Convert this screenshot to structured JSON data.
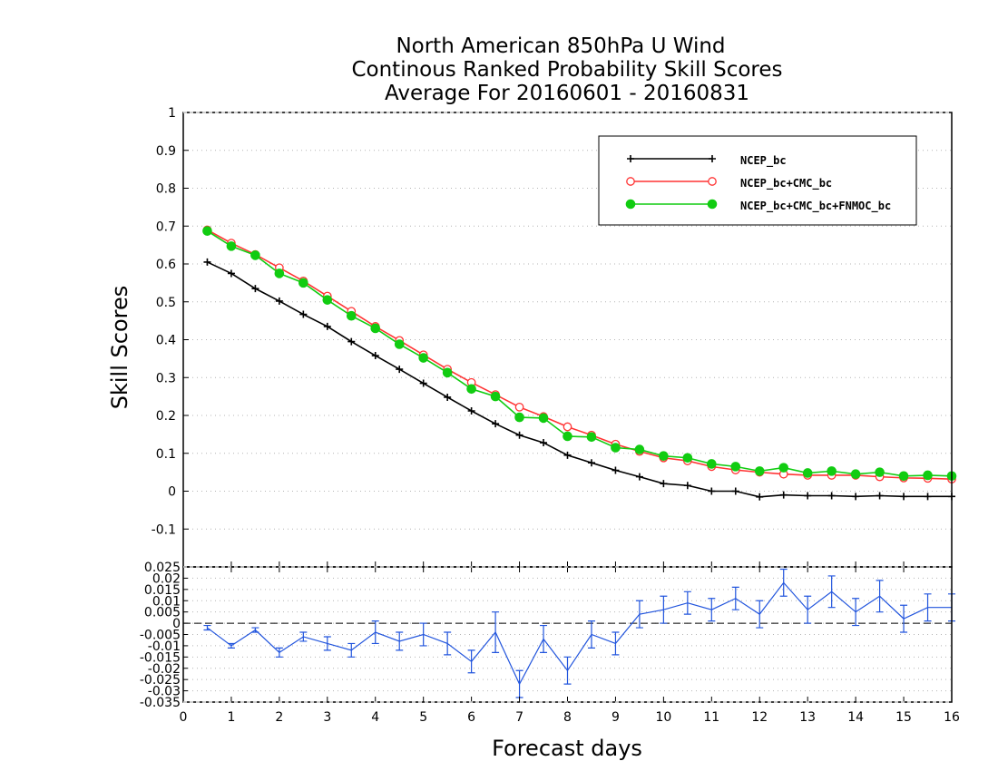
{
  "chart_data": [
    {
      "type": "line",
      "title_lines": [
        "North American 850hPa U Wind",
        "Continous Ranked Probability Skill Scores",
        "Average For 20160601 - 20160831"
      ],
      "xlabel": "Forecast days",
      "ylabel": "Skill Scores",
      "xlim": [
        0,
        16
      ],
      "ylim": [
        -0.2,
        1
      ],
      "yticks": [
        "-0.1",
        "0",
        "0.1",
        "0.2",
        "0.3",
        "0.4",
        "0.5",
        "0.6",
        "0.7",
        "0.8",
        "0.9",
        "1"
      ],
      "grid": true,
      "legend_position": "top-right",
      "x": [
        0.5,
        1,
        1.5,
        2,
        2.5,
        3,
        3.5,
        4,
        4.5,
        5,
        5.5,
        6,
        6.5,
        7,
        7.5,
        8,
        8.5,
        9,
        9.5,
        10,
        10.5,
        11,
        11.5,
        12,
        12.5,
        13,
        13.5,
        14,
        14.5,
        15,
        15.5,
        16
      ],
      "series": [
        {
          "name": "NCEP_bc",
          "color": "#000000",
          "marker": "plus",
          "values": [
            0.605,
            0.575,
            0.535,
            0.502,
            0.467,
            0.435,
            0.395,
            0.358,
            0.322,
            0.285,
            0.248,
            0.212,
            0.178,
            0.148,
            0.128,
            0.095,
            0.075,
            0.055,
            0.038,
            0.02,
            0.015,
            0.0,
            0.0,
            -0.015,
            -0.01,
            -0.012,
            -0.012,
            -0.014,
            -0.012,
            -0.014,
            -0.014,
            -0.014
          ]
        },
        {
          "name": "NCEP_bc+CMC_bc",
          "color": "#ff3333",
          "marker": "open-circle",
          "values": [
            0.69,
            0.655,
            0.625,
            0.59,
            0.555,
            0.515,
            0.475,
            0.435,
            0.398,
            0.36,
            0.322,
            0.287,
            0.255,
            0.222,
            0.197,
            0.17,
            0.148,
            0.124,
            0.105,
            0.088,
            0.08,
            0.065,
            0.056,
            0.05,
            0.045,
            0.042,
            0.042,
            0.042,
            0.038,
            0.035,
            0.034,
            0.032
          ]
        },
        {
          "name": "NCEP_bc+CMC_bc+FNMOC_bc",
          "color": "#11cc11",
          "marker": "filled-circle",
          "values": [
            0.687,
            0.647,
            0.623,
            0.575,
            0.55,
            0.505,
            0.463,
            0.43,
            0.388,
            0.352,
            0.313,
            0.27,
            0.25,
            0.195,
            0.193,
            0.145,
            0.143,
            0.115,
            0.11,
            0.093,
            0.088,
            0.072,
            0.065,
            0.053,
            0.062,
            0.048,
            0.053,
            0.045,
            0.05,
            0.04,
            0.042,
            0.04
          ]
        }
      ]
    },
    {
      "type": "line",
      "title": "",
      "xlabel": "",
      "ylabel": "",
      "xlim": [
        0,
        16
      ],
      "ylim": [
        -0.035,
        0.025
      ],
      "xticks": [
        "0",
        "1",
        "2",
        "3",
        "4",
        "5",
        "6",
        "7",
        "8",
        "9",
        "10",
        "11",
        "12",
        "13",
        "14",
        "15",
        "16"
      ],
      "yticks": [
        "-0.035",
        "-0.03",
        "-0.025",
        "-0.02",
        "-0.015",
        "-0.01",
        "-0.005",
        "0",
        "0.005",
        "0.01",
        "0.015",
        "0.02",
        "0.025"
      ],
      "grid": true,
      "x": [
        0.5,
        1,
        1.5,
        2,
        2.5,
        3,
        3.5,
        4,
        4.5,
        5,
        5.5,
        6,
        6.5,
        7,
        7.5,
        8,
        8.5,
        9,
        9.5,
        10,
        10.5,
        11,
        11.5,
        12,
        12.5,
        13,
        13.5,
        14,
        14.5,
        15,
        15.5,
        16
      ],
      "series": [
        {
          "name": "",
          "color": "#2255dd",
          "marker": "error-bar",
          "values": [
            -0.002,
            -0.01,
            -0.003,
            -0.013,
            -0.006,
            -0.009,
            -0.012,
            -0.004,
            -0.008,
            -0.005,
            -0.009,
            -0.017,
            -0.004,
            -0.027,
            -0.007,
            -0.021,
            -0.005,
            -0.009,
            0.004,
            0.006,
            0.009,
            0.006,
            0.011,
            0.004,
            0.018,
            0.006,
            0.014,
            0.005,
            0.012,
            0.002,
            0.007,
            0.007
          ],
          "error": [
            0.001,
            0.001,
            0.001,
            0.002,
            0.002,
            0.003,
            0.003,
            0.005,
            0.004,
            0.005,
            0.005,
            0.005,
            0.009,
            0.006,
            0.006,
            0.006,
            0.006,
            0.005,
            0.006,
            0.006,
            0.005,
            0.005,
            0.005,
            0.006,
            0.006,
            0.006,
            0.007,
            0.006,
            0.007,
            0.006,
            0.006,
            0.006
          ]
        }
      ]
    }
  ]
}
